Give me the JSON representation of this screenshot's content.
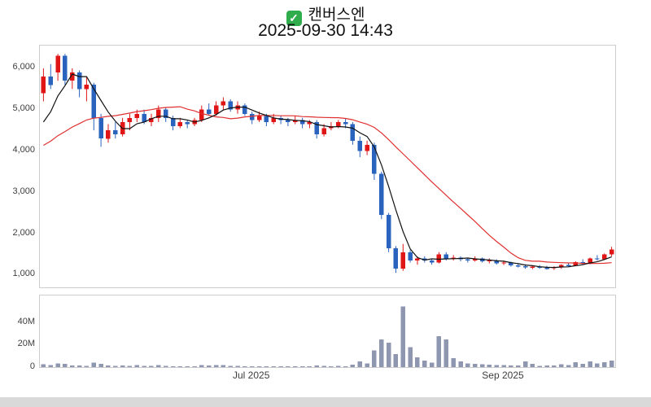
{
  "header": {
    "checkbox_glyph": "✓",
    "title": "캔버스엔",
    "timestamp": "2025-09-30 14:43"
  },
  "chart_data": {
    "type": "candlestick_with_volume",
    "title": "캔버스엔",
    "timestamp": "2025-09-30 14:43",
    "grid": false,
    "legend": "none",
    "price_axis": {
      "range": [
        700,
        6550
      ],
      "ticks": [
        1000,
        2000,
        3000,
        4000,
        5000,
        6000
      ],
      "tick_labels": [
        "1,000",
        "2,000",
        "3,000",
        "4,000",
        "5,000",
        "6,000"
      ]
    },
    "volume_axis": {
      "unit": "millions",
      "range": [
        0,
        65
      ],
      "ticks": [
        0,
        20,
        40
      ],
      "tick_labels": [
        "0",
        "20M",
        "40M"
      ]
    },
    "x_ticks": [
      {
        "label": "Jul 2025",
        "index": 29
      },
      {
        "label": "Sep 2025",
        "index": 64
      }
    ],
    "candles_format": [
      "open",
      "high",
      "low",
      "close",
      "volume_millions"
    ],
    "candles": [
      [
        5400,
        6000,
        5200,
        5800,
        2.5
      ],
      [
        5800,
        6100,
        5500,
        5600,
        1.8
      ],
      [
        5900,
        6350,
        5700,
        6300,
        3.2
      ],
      [
        6300,
        6350,
        5600,
        5700,
        2.8
      ],
      [
        5700,
        6000,
        5500,
        5900,
        1.6
      ],
      [
        5900,
        5950,
        5300,
        5500,
        1.4
      ],
      [
        5500,
        5800,
        5200,
        5600,
        1.2
      ],
      [
        5600,
        5650,
        4500,
        4800,
        4.2
      ],
      [
        4800,
        4900,
        4100,
        4300,
        3.0
      ],
      [
        4300,
        4650,
        4200,
        4500,
        1.6
      ],
      [
        4500,
        4700,
        4300,
        4400,
        1.2
      ],
      [
        4400,
        4800,
        4350,
        4700,
        1.5
      ],
      [
        4700,
        4900,
        4500,
        4800,
        1.1
      ],
      [
        4800,
        5000,
        4700,
        4900,
        1.9
      ],
      [
        4900,
        5000,
        4650,
        4700,
        1.2
      ],
      [
        4700,
        4900,
        4600,
        4800,
        1.0
      ],
      [
        4800,
        5100,
        4700,
        5000,
        1.7
      ],
      [
        5000,
        5050,
        4700,
        4800,
        1.1
      ],
      [
        4800,
        4850,
        4500,
        4600,
        0.9
      ],
      [
        4600,
        4800,
        4550,
        4700,
        0.8
      ],
      [
        4700,
        4750,
        4550,
        4650,
        0.7
      ],
      [
        4650,
        4800,
        4600,
        4750,
        0.8
      ],
      [
        4750,
        5100,
        4700,
        5000,
        1.9
      ],
      [
        5000,
        5150,
        4850,
        4900,
        1.4
      ],
      [
        4900,
        5200,
        4850,
        5100,
        1.7
      ],
      [
        5100,
        5300,
        5000,
        5200,
        1.9
      ],
      [
        5200,
        5250,
        4950,
        5000,
        1.2
      ],
      [
        5000,
        5200,
        4900,
        5100,
        1.0
      ],
      [
        5100,
        5150,
        4850,
        4900,
        0.9
      ],
      [
        4900,
        4950,
        4650,
        4750,
        0.8
      ],
      [
        4750,
        4950,
        4700,
        4850,
        0.8
      ],
      [
        4850,
        4900,
        4600,
        4700,
        0.7
      ],
      [
        4700,
        4900,
        4650,
        4800,
        0.9
      ],
      [
        4800,
        4850,
        4650,
        4750,
        0.7
      ],
      [
        4750,
        4800,
        4600,
        4700,
        0.6
      ],
      [
        4700,
        4850,
        4650,
        4750,
        0.7
      ],
      [
        4750,
        4800,
        4550,
        4650,
        0.6
      ],
      [
        4650,
        4750,
        4550,
        4700,
        0.7
      ],
      [
        4700,
        4750,
        4300,
        4400,
        1.4
      ],
      [
        4400,
        4650,
        4350,
        4550,
        1.0
      ],
      [
        4550,
        4700,
        4500,
        4600,
        0.9
      ],
      [
        4600,
        4750,
        4550,
        4700,
        1.0
      ],
      [
        4700,
        4780,
        4550,
        4650,
        0.9
      ],
      [
        4650,
        4700,
        4150,
        4250,
        2.2
      ],
      [
        4250,
        4350,
        3850,
        4000,
        5.0
      ],
      [
        4000,
        4250,
        3900,
        4150,
        3.5
      ],
      [
        4150,
        4200,
        3300,
        3450,
        15.0
      ],
      [
        3450,
        3500,
        2350,
        2450,
        25.0
      ],
      [
        2450,
        2500,
        1550,
        1650,
        22.0
      ],
      [
        1650,
        1700,
        1050,
        1150,
        12.0
      ],
      [
        1150,
        1750,
        1100,
        1550,
        55.0
      ],
      [
        1550,
        1600,
        1300,
        1350,
        18.0
      ],
      [
        1350,
        1450,
        1250,
        1400,
        9.0
      ],
      [
        1400,
        1450,
        1300,
        1350,
        6.0
      ],
      [
        1350,
        1400,
        1250,
        1300,
        4.0
      ],
      [
        1300,
        1550,
        1280,
        1500,
        28.0
      ],
      [
        1500,
        1550,
        1350,
        1400,
        25.0
      ],
      [
        1400,
        1480,
        1350,
        1420,
        8.0
      ],
      [
        1420,
        1450,
        1330,
        1380,
        5.0
      ],
      [
        1380,
        1420,
        1300,
        1350,
        3.5
      ],
      [
        1350,
        1450,
        1320,
        1400,
        3.0
      ],
      [
        1400,
        1420,
        1300,
        1330,
        2.5
      ],
      [
        1330,
        1400,
        1280,
        1350,
        2.2
      ],
      [
        1350,
        1380,
        1250,
        1280,
        2.0
      ],
      [
        1280,
        1350,
        1240,
        1300,
        1.8
      ],
      [
        1300,
        1320,
        1200,
        1230,
        1.6
      ],
      [
        1230,
        1280,
        1180,
        1210,
        1.5
      ],
      [
        1210,
        1260,
        1150,
        1180,
        5.0
      ],
      [
        1180,
        1230,
        1140,
        1200,
        2.8
      ],
      [
        1200,
        1240,
        1150,
        1170,
        1.2
      ],
      [
        1170,
        1220,
        1130,
        1160,
        1.5
      ],
      [
        1160,
        1210,
        1120,
        1190,
        1.3
      ],
      [
        1190,
        1260,
        1150,
        1240,
        2.5
      ],
      [
        1240,
        1300,
        1200,
        1220,
        2.0
      ],
      [
        1220,
        1330,
        1210,
        1310,
        4.5
      ],
      [
        1310,
        1380,
        1250,
        1280,
        3.0
      ],
      [
        1280,
        1420,
        1260,
        1400,
        5.0
      ],
      [
        1400,
        1480,
        1350,
        1380,
        3.5
      ],
      [
        1380,
        1520,
        1360,
        1500,
        4.5
      ],
      [
        1500,
        1680,
        1450,
        1620,
        6.0
      ]
    ],
    "prior_closes": [
      3600,
      3650,
      3700,
      3750,
      3800,
      3850,
      3900,
      3950,
      4000,
      4050,
      4100,
      4150,
      4200,
      4250,
      4300,
      4350,
      4400,
      4450,
      4500
    ],
    "overlays": [
      {
        "name": "ma-long",
        "period": 20,
        "color": "#e03030"
      },
      {
        "name": "ma-short",
        "period": 5,
        "color": "#111111"
      }
    ],
    "colors": {
      "up": "#e01616",
      "down": "#2a63bd",
      "volume": "#8e96b0"
    }
  }
}
